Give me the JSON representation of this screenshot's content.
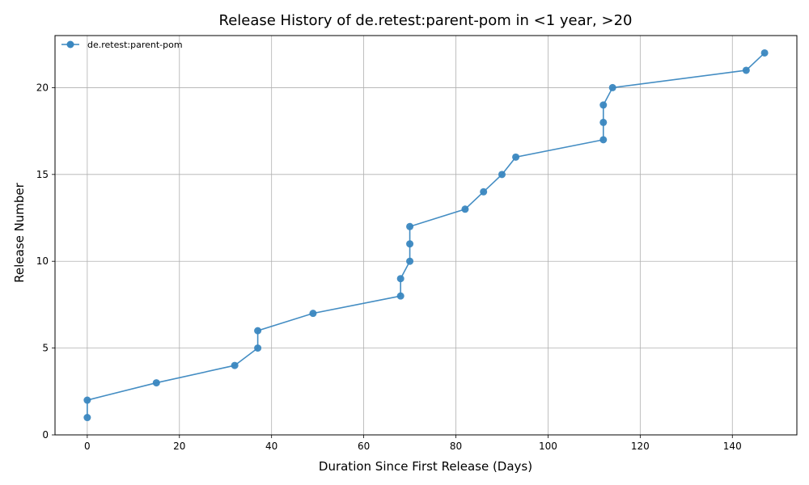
{
  "chart_data": {
    "type": "line",
    "title": "Release History of de.retest:parent-pom in <1 year, >20",
    "xlabel": "Duration Since First Release (Days)",
    "ylabel": "Release Number",
    "xlim": [
      -7,
      154
    ],
    "ylim": [
      0,
      23
    ],
    "xticks": [
      0,
      20,
      40,
      60,
      80,
      100,
      120,
      140
    ],
    "yticks": [
      0,
      5,
      10,
      15,
      20
    ],
    "grid": true,
    "legend": "top-left",
    "series": [
      {
        "name": "de.retest:parent-pom",
        "color": "#3a87c0",
        "marker": "circle",
        "x": [
          0,
          0,
          15,
          32,
          37,
          37,
          49,
          68,
          68,
          70,
          70,
          70,
          82,
          86,
          90,
          93,
          112,
          112,
          112,
          114,
          143,
          147
        ],
        "y": [
          1,
          2,
          3,
          4,
          5,
          6,
          7,
          8,
          9,
          10,
          11,
          12,
          13,
          14,
          15,
          16,
          17,
          18,
          19,
          20,
          21,
          22
        ]
      }
    ]
  }
}
